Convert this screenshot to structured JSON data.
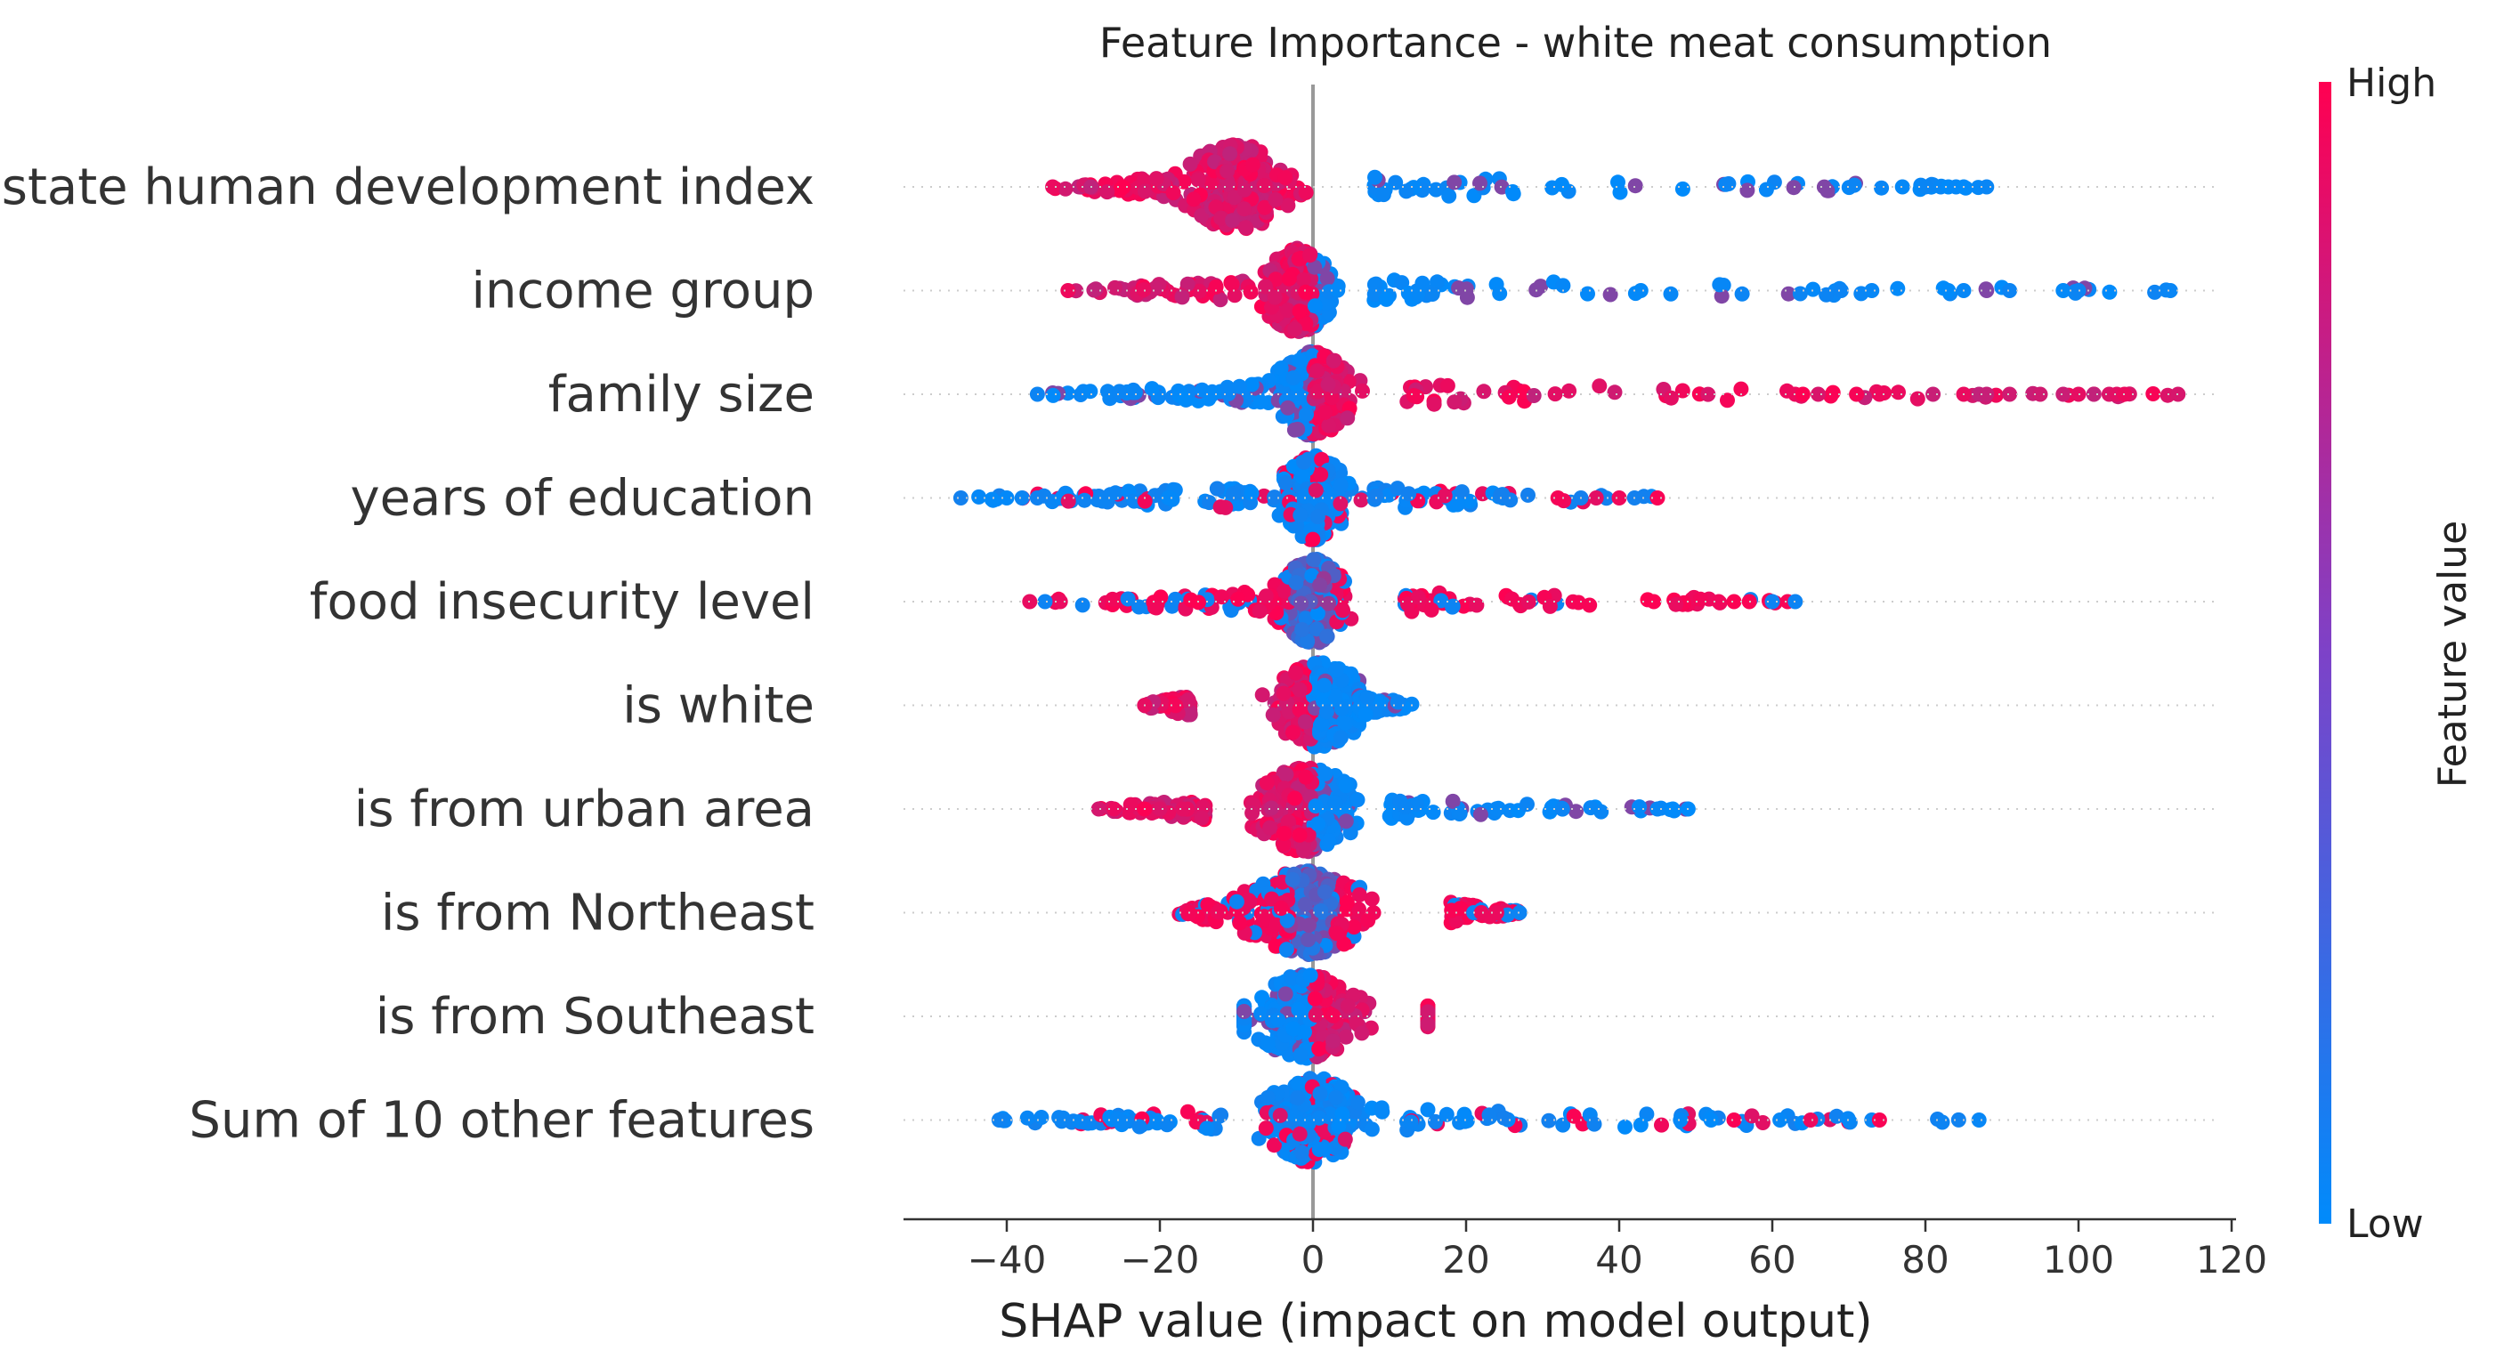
{
  "chart_data": {
    "type": "scatter",
    "subtype": "shap-beeswarm",
    "title": "Feature Importance - white meat consumption",
    "xlabel": "SHAP value (impact on model output)",
    "xlim": [
      -53,
      120
    ],
    "xticks": [
      -40,
      -20,
      0,
      20,
      40,
      60,
      80,
      100,
      120
    ],
    "xtick_labels": [
      "−40",
      "−20",
      "0",
      "20",
      "40",
      "60",
      "80",
      "100",
      "120"
    ],
    "colorbar": {
      "label": "Feature value",
      "high": "High",
      "low": "Low"
    },
    "colors": {
      "low": "#008bfb",
      "high": "#ff0051",
      "zero_line": "#999999",
      "axis": "#333333"
    },
    "features": [
      {
        "name": "state human development index",
        "min": -34,
        "max": 88,
        "core_left": -18,
        "core_right": 8,
        "peak": -10,
        "hi_side": "left",
        "outliers": [
          -34,
          -29,
          77,
          80,
          82,
          83,
          84,
          85,
          88
        ]
      },
      {
        "name": "income group",
        "min": -32,
        "max": 112,
        "core_left": -8,
        "core_right": 8,
        "peak": -2,
        "hi_side": "left",
        "outliers": [
          -32,
          69,
          73,
          83,
          85,
          88,
          91,
          98,
          100,
          112
        ]
      },
      {
        "name": "family size",
        "min": -36,
        "max": 113,
        "core_left": -6,
        "core_right": 12,
        "peak": 0,
        "hi_side": "right",
        "outliers": [
          -36,
          63,
          64,
          66,
          71,
          74,
          81,
          85,
          87,
          88,
          91,
          95,
          98,
          100,
          102,
          104,
          105,
          106,
          113
        ]
      },
      {
        "name": "years of education",
        "min": -46,
        "max": 45,
        "core_left": -8,
        "core_right": 8,
        "peak": 0,
        "hi_side": "mixed",
        "outliers": [
          -46,
          -40,
          -38,
          -36,
          32,
          35,
          37,
          40,
          42,
          45
        ]
      },
      {
        "name": "food insecurity level",
        "min": -37,
        "max": 63,
        "core_left": -5,
        "core_right": 12,
        "peak": 0,
        "hi_side": "both",
        "outliers": [
          -37,
          -35,
          -33,
          53,
          55,
          57,
          60,
          62,
          63
        ]
      },
      {
        "name": "is white",
        "min": -22,
        "max": 13,
        "core_left": -16,
        "core_right": 6,
        "peak": 1,
        "hi_side": "left",
        "outliers": [
          -22
        ]
      },
      {
        "name": "is from urban area",
        "min": -28,
        "max": 49,
        "core_left": -14,
        "core_right": 10,
        "peak": -1,
        "hi_side": "left",
        "outliers": [
          -28,
          -26,
          -22,
          -20,
          -17,
          45,
          47,
          49
        ]
      },
      {
        "name": "is from Northeast",
        "min": -18,
        "max": 27,
        "core_left": -12,
        "core_right": 18,
        "peak": -1,
        "hi_side": "both",
        "outliers": [
          21,
          22,
          24,
          27
        ]
      },
      {
        "name": "is from Southeast",
        "min": -9,
        "max": 15,
        "core_left": -9,
        "core_right": 15,
        "peak": -1,
        "hi_side": "right",
        "outliers": []
      },
      {
        "name": "Sum of 10 other features",
        "min": -41,
        "max": 87,
        "core_left": -12,
        "core_right": 12,
        "peak": 0,
        "hi_side": "mixed",
        "outliers": [
          -41,
          48,
          52,
          55,
          61,
          65,
          73,
          74,
          87
        ]
      }
    ]
  }
}
